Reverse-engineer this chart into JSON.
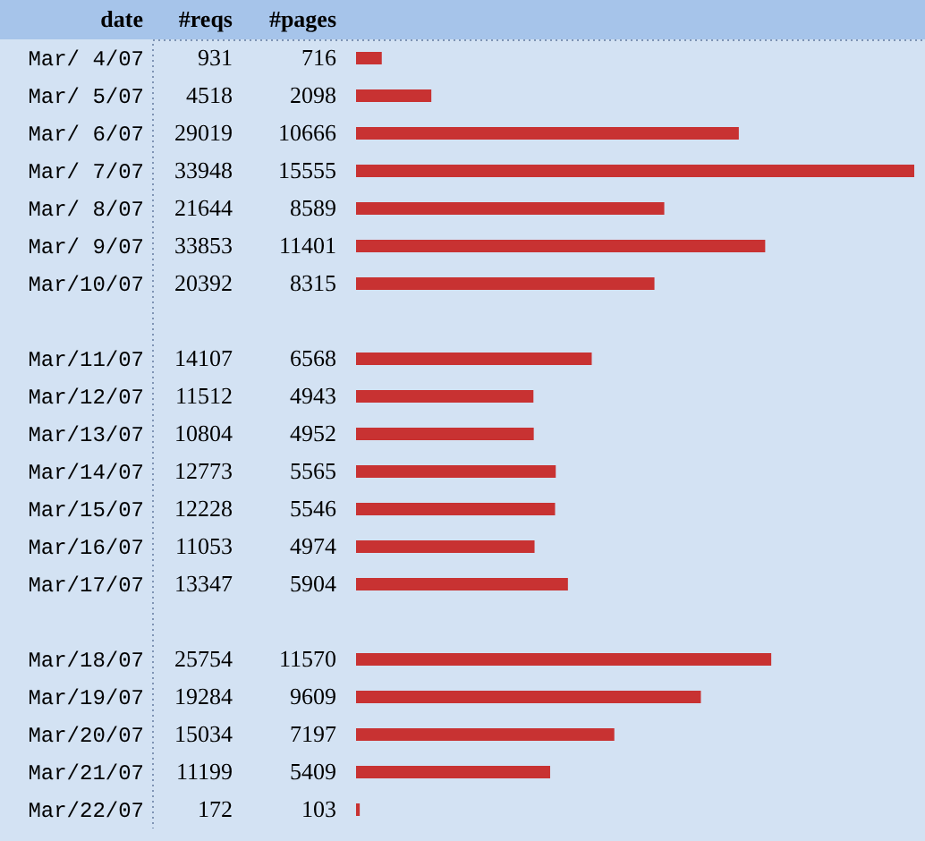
{
  "chart_data": {
    "type": "bar",
    "orientation": "horizontal",
    "ylabel": "date",
    "data_labels": true,
    "tick_labels": "y",
    "categories": [
      "Mar/ 4/07",
      "Mar/ 5/07",
      "Mar/ 6/07",
      "Mar/ 7/07",
      "Mar/ 8/07",
      "Mar/ 9/07",
      "Mar/10/07",
      null,
      "Mar/11/07",
      "Mar/12/07",
      "Mar/13/07",
      "Mar/14/07",
      "Mar/15/07",
      "Mar/16/07",
      "Mar/17/07",
      null,
      "Mar/18/07",
      "Mar/19/07",
      "Mar/20/07",
      "Mar/21/07",
      "Mar/22/07"
    ],
    "series": [
      {
        "name": "#pages",
        "type": "bar",
        "color": "#c83232",
        "values": [
          716,
          2098,
          10666,
          15555,
          8589,
          11401,
          8315,
          null,
          6568,
          4943,
          4952,
          5565,
          5546,
          4974,
          5904,
          null,
          11570,
          9609,
          7197,
          5409,
          103
        ]
      }
    ],
    "annotations": [
      "#reqs",
      "931",
      "4518",
      "29019",
      "33948",
      "21644",
      "33853",
      "20392",
      "14107",
      "11512",
      "10804",
      "12773",
      "12228",
      "11053",
      "13347",
      "25754",
      "19284",
      "15034",
      "11199",
      "172"
    ]
  }
}
